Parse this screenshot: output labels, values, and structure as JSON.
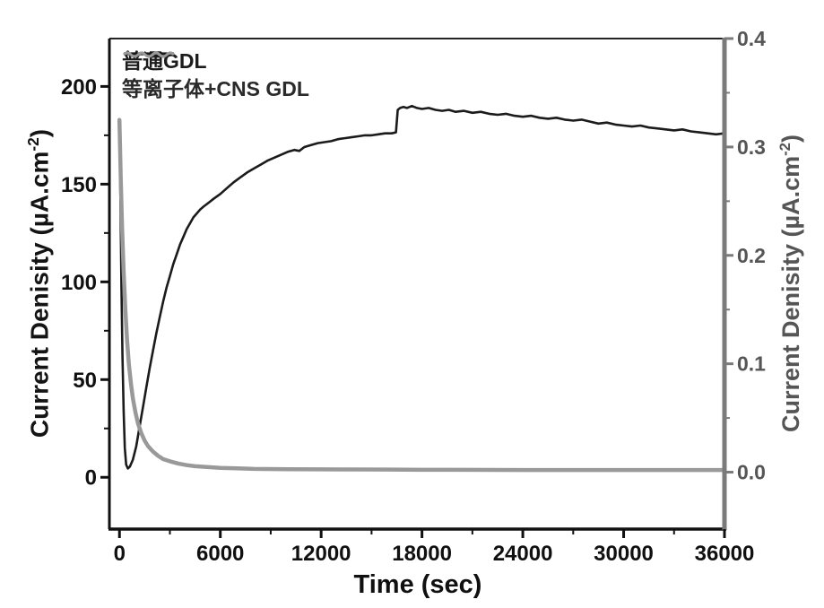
{
  "figure": {
    "x_axis": {
      "title": "Time (sec)",
      "ticks": [
        0,
        6000,
        12000,
        18000,
        24000,
        30000,
        36000
      ],
      "minor_ticks": [
        3000,
        9000,
        15000,
        21000,
        27000,
        33000
      ],
      "range": [
        -600,
        36000
      ],
      "color": "#111111"
    },
    "left_axis": {
      "label_prefix": "Current Denisity (µA.cm",
      "label_sup": "-2",
      "label_suffix": ")",
      "ticks": [
        0,
        50,
        100,
        150,
        200
      ],
      "minor_ticks": [
        25,
        75,
        125,
        175
      ],
      "range": [
        -26.5,
        224.5
      ],
      "color": "#111111"
    },
    "right_axis": {
      "label_prefix": "Current Denisity (µA.cm",
      "label_sup": "-2",
      "label_suffix": ")",
      "tick_labels": [
        "0.0",
        "0.1",
        "0.2",
        "0.3",
        "0.4"
      ],
      "ticks": [
        0.0,
        0.1,
        0.2,
        0.3,
        0.4
      ],
      "minor_ticks": [
        0.05,
        0.15,
        0.25,
        0.35
      ],
      "range": [
        -0.0525,
        0.4
      ],
      "spine_color": "#7a7a7a",
      "text_color": "#555555"
    },
    "legend": [
      {
        "label": "普通GDL",
        "color": "#1b1b1b",
        "style": "solid"
      },
      {
        "label": "等离子体+CNS GDL",
        "color": "#999999",
        "style": "wavy"
      }
    ]
  },
  "chart_data": {
    "type": "line",
    "title": "",
    "xlabel": "Time (sec)",
    "ylabel_left": "Current Denisity (µA.cm-2)",
    "ylabel_right": "Current Denisity (µA.cm-2)",
    "xlim": [
      0,
      36000
    ],
    "ylim_left": [
      0,
      200
    ],
    "ylim_right": [
      0.0,
      0.4
    ],
    "grid": false,
    "legend_position": "top-left",
    "series": [
      {
        "name": "普通GDL",
        "axis": "left",
        "color": "#1b1b1b",
        "width": 2.6,
        "points": [
          [
            0,
            183
          ],
          [
            60,
            140
          ],
          [
            120,
            96
          ],
          [
            180,
            62
          ],
          [
            250,
            34
          ],
          [
            320,
            15
          ],
          [
            400,
            6.5
          ],
          [
            500,
            4.5
          ],
          [
            620,
            5.5
          ],
          [
            800,
            9
          ],
          [
            1000,
            16
          ],
          [
            1200,
            26
          ],
          [
            1400,
            36
          ],
          [
            1600,
            46
          ],
          [
            1800,
            56
          ],
          [
            2000,
            65
          ],
          [
            2200,
            74
          ],
          [
            2400,
            82
          ],
          [
            2600,
            90
          ],
          [
            2800,
            97
          ],
          [
            3000,
            103
          ],
          [
            3200,
            109
          ],
          [
            3400,
            114
          ],
          [
            3600,
            119
          ],
          [
            3800,
            123
          ],
          [
            4000,
            127
          ],
          [
            4200,
            130
          ],
          [
            4400,
            133
          ],
          [
            4600,
            135
          ],
          [
            4800,
            137
          ],
          [
            5000,
            138.5
          ],
          [
            5300,
            140.5
          ],
          [
            5600,
            142.5
          ],
          [
            6000,
            145
          ],
          [
            6400,
            148
          ],
          [
            6800,
            151
          ],
          [
            7200,
            153.5
          ],
          [
            7600,
            156
          ],
          [
            8000,
            158
          ],
          [
            8400,
            160
          ],
          [
            8800,
            162
          ],
          [
            9200,
            163.5
          ],
          [
            9600,
            165
          ],
          [
            10000,
            166.5
          ],
          [
            10400,
            167.5
          ],
          [
            10700,
            167
          ],
          [
            11000,
            169
          ],
          [
            11400,
            170
          ],
          [
            11800,
            171
          ],
          [
            12200,
            171.5
          ],
          [
            12600,
            172
          ],
          [
            13000,
            173
          ],
          [
            13400,
            173.5
          ],
          [
            13800,
            174
          ],
          [
            14200,
            174.5
          ],
          [
            14600,
            175
          ],
          [
            15000,
            175
          ],
          [
            15400,
            175.5
          ],
          [
            15800,
            176
          ],
          [
            16200,
            176
          ],
          [
            16450,
            176.5
          ],
          [
            16560,
            188
          ],
          [
            16700,
            189
          ],
          [
            16900,
            189.5
          ],
          [
            17100,
            189
          ],
          [
            17400,
            190
          ],
          [
            17700,
            189
          ],
          [
            18000,
            188.5
          ],
          [
            18400,
            189
          ],
          [
            18800,
            188
          ],
          [
            19200,
            187.5
          ],
          [
            19600,
            188
          ],
          [
            20000,
            187
          ],
          [
            20500,
            187.5
          ],
          [
            21000,
            186.5
          ],
          [
            21500,
            187
          ],
          [
            22000,
            186
          ],
          [
            22500,
            185.5
          ],
          [
            23000,
            186
          ],
          [
            23500,
            185
          ],
          [
            24000,
            184.5
          ],
          [
            24500,
            185
          ],
          [
            25000,
            184
          ],
          [
            25500,
            183.5
          ],
          [
            26000,
            184
          ],
          [
            26500,
            183
          ],
          [
            27000,
            182.5
          ],
          [
            27500,
            183
          ],
          [
            28000,
            182
          ],
          [
            28500,
            181
          ],
          [
            29000,
            181.5
          ],
          [
            29500,
            180.5
          ],
          [
            30000,
            180
          ],
          [
            30500,
            179.5
          ],
          [
            31000,
            180
          ],
          [
            31500,
            179
          ],
          [
            32000,
            178.5
          ],
          [
            32500,
            178
          ],
          [
            33000,
            177.5
          ],
          [
            33500,
            178
          ],
          [
            34000,
            177
          ],
          [
            34500,
            176.5
          ],
          [
            35000,
            176
          ],
          [
            35500,
            175.5
          ],
          [
            36000,
            176
          ]
        ]
      },
      {
        "name": "等离子体+CNS GDL",
        "axis": "right",
        "color": "#999999",
        "width": 4.5,
        "points": [
          [
            0,
            0.325
          ],
          [
            80,
            0.27
          ],
          [
            160,
            0.225
          ],
          [
            250,
            0.185
          ],
          [
            350,
            0.15
          ],
          [
            450,
            0.122
          ],
          [
            560,
            0.1
          ],
          [
            680,
            0.082
          ],
          [
            800,
            0.068
          ],
          [
            950,
            0.055
          ],
          [
            1100,
            0.045
          ],
          [
            1300,
            0.036
          ],
          [
            1500,
            0.029
          ],
          [
            1700,
            0.024
          ],
          [
            2000,
            0.019
          ],
          [
            2300,
            0.015
          ],
          [
            2600,
            0.012
          ],
          [
            3000,
            0.01
          ],
          [
            3500,
            0.008
          ],
          [
            4000,
            0.0065
          ],
          [
            4500,
            0.0055
          ],
          [
            5000,
            0.005
          ],
          [
            6000,
            0.004
          ],
          [
            7000,
            0.0035
          ],
          [
            8000,
            0.003
          ],
          [
            10000,
            0.0028
          ],
          [
            12000,
            0.0026
          ],
          [
            14000,
            0.0025
          ],
          [
            16000,
            0.0024
          ],
          [
            18000,
            0.0022
          ],
          [
            20000,
            0.0022
          ],
          [
            22000,
            0.0021
          ],
          [
            24000,
            0.002
          ],
          [
            26000,
            0.002
          ],
          [
            28000,
            0.002
          ],
          [
            30000,
            0.002
          ],
          [
            32000,
            0.002
          ],
          [
            34000,
            0.002
          ],
          [
            36000,
            0.002
          ]
        ]
      }
    ]
  }
}
